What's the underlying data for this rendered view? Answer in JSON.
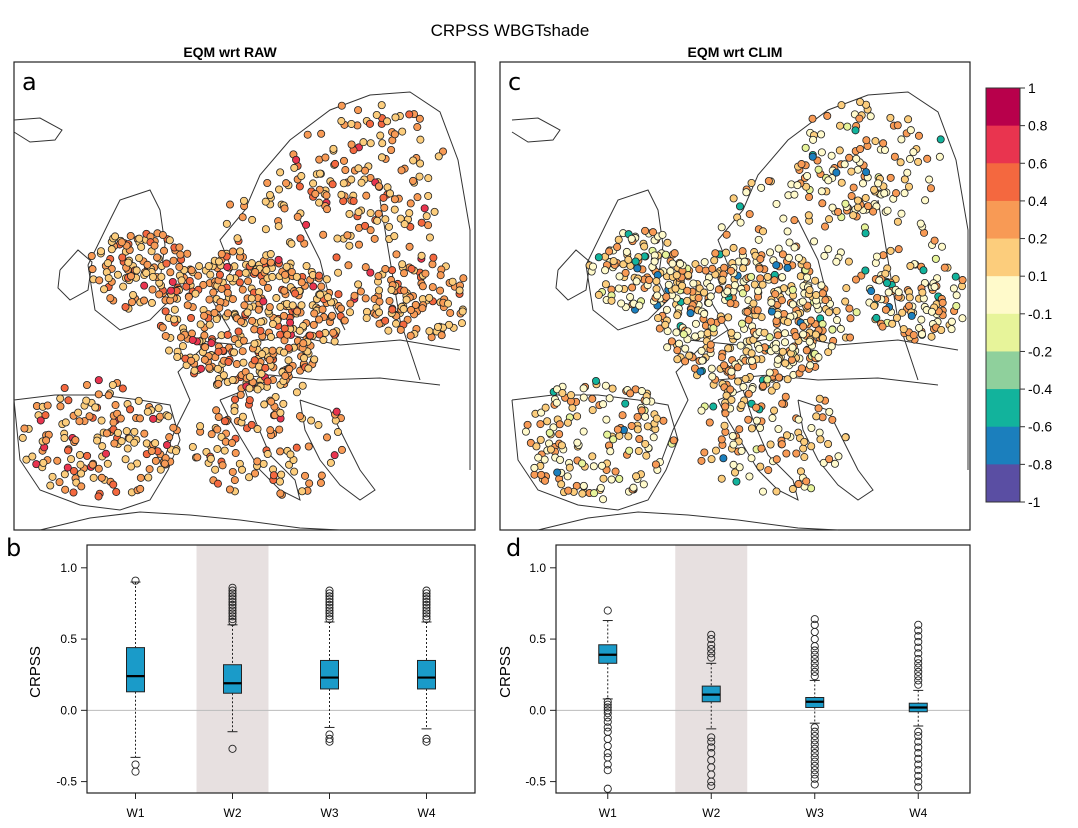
{
  "figure_title": "CRPSS WBGTshade",
  "colorbar": {
    "labels": [
      "1",
      "0.8",
      "0.6",
      "0.4",
      "0.2",
      "0.1",
      "-0.1",
      "-0.2",
      "-0.4",
      "-0.6",
      "-0.8",
      "-1"
    ],
    "colors": [
      "#b8004b",
      "#e9344f",
      "#f4683f",
      "#f89a55",
      "#fccd7c",
      "#fffacb",
      "#e7f49a",
      "#8fd09c",
      "#12b39c",
      "#1b7fbd",
      "#5a4ea3"
    ]
  },
  "station_marker_outline": "#222222",
  "chart_data": [
    {
      "type": "map",
      "panel": "a",
      "title": "EQM wrt RAW",
      "dominant_classes": [
        "0.1 to 0.2",
        "0.2 to 0.4"
      ],
      "notes": ""
    },
    {
      "type": "map",
      "panel": "c",
      "title": "EQM wrt CLIM",
      "dominant_classes": [
        "-0.1 to 0.1",
        "0.1 to 0.2",
        "0.2 to 0.4"
      ],
      "notes": ""
    },
    {
      "type": "boxplot",
      "panel": "b",
      "ylabel": "CRPSS",
      "ylim": [
        -0.58,
        1.16
      ],
      "yticks": [
        -0.5,
        0.0,
        0.5,
        1.0
      ],
      "ytick_labels": [
        "-0.5",
        "0.0",
        "0.5",
        "1.0"
      ],
      "categories": [
        "W1",
        "W2",
        "W3",
        "W4"
      ],
      "highlight_category": "W2",
      "box_color": "#1a9bc9",
      "boxes": [
        {
          "name": "W1",
          "q1": 0.13,
          "median": 0.24,
          "q3": 0.44,
          "whisker_low": -0.33,
          "whisker_high": 0.9,
          "outliers": [
            -0.38,
            -0.43,
            0.91
          ]
        },
        {
          "name": "W2",
          "q1": 0.12,
          "median": 0.19,
          "q3": 0.32,
          "whisker_low": -0.15,
          "whisker_high": 0.6,
          "outliers": [
            -0.27,
            0.62,
            0.64,
            0.66,
            0.68,
            0.7,
            0.72,
            0.74,
            0.76,
            0.78,
            0.8,
            0.82,
            0.84,
            0.86
          ]
        },
        {
          "name": "W3",
          "q1": 0.15,
          "median": 0.23,
          "q3": 0.35,
          "whisker_low": -0.12,
          "whisker_high": 0.62,
          "outliers": [
            -0.17,
            -0.2,
            -0.22,
            0.64,
            0.66,
            0.68,
            0.7,
            0.72,
            0.74,
            0.76,
            0.78,
            0.8,
            0.82,
            0.84
          ]
        },
        {
          "name": "W4",
          "q1": 0.15,
          "median": 0.23,
          "q3": 0.35,
          "whisker_low": -0.13,
          "whisker_high": 0.62,
          "outliers": [
            -0.2,
            -0.22,
            0.64,
            0.66,
            0.68,
            0.7,
            0.72,
            0.74,
            0.76,
            0.78,
            0.8,
            0.82,
            0.84
          ]
        }
      ]
    },
    {
      "type": "boxplot",
      "panel": "d",
      "ylabel": "CRPSS",
      "ylim": [
        -0.58,
        1.16
      ],
      "yticks": [
        -0.5,
        0.0,
        0.5,
        1.0
      ],
      "ytick_labels": [
        "-0.5",
        "0.0",
        "0.5",
        "1.0"
      ],
      "categories": [
        "W1",
        "W2",
        "W3",
        "W4"
      ],
      "highlight_category": "W2",
      "box_color": "#1a9bc9",
      "boxes": [
        {
          "name": "W1",
          "q1": 0.33,
          "median": 0.39,
          "q3": 0.46,
          "whisker_low": 0.08,
          "whisker_high": 0.63,
          "outliers": [
            -0.55,
            -0.42,
            -0.38,
            -0.33,
            -0.3,
            -0.25,
            -0.2,
            -0.15,
            -0.12,
            -0.08,
            -0.05,
            -0.02,
            0.0,
            0.02,
            0.04,
            0.06,
            0.7
          ]
        },
        {
          "name": "W2",
          "q1": 0.06,
          "median": 0.11,
          "q3": 0.17,
          "whisker_low": -0.13,
          "whisker_high": 0.33,
          "outliers": [
            -0.53,
            -0.5,
            -0.45,
            -0.4,
            -0.35,
            -0.3,
            -0.26,
            -0.22,
            -0.19,
            0.37,
            0.4,
            0.43,
            0.46,
            0.5,
            0.53
          ]
        },
        {
          "name": "W3",
          "q1": 0.02,
          "median": 0.06,
          "q3": 0.09,
          "whisker_low": -0.09,
          "whisker_high": 0.21,
          "outliers": [
            -0.52,
            -0.48,
            -0.45,
            -0.42,
            -0.39,
            -0.36,
            -0.33,
            -0.3,
            -0.27,
            -0.24,
            -0.21,
            -0.18,
            -0.15,
            -0.12,
            0.24,
            0.27,
            0.3,
            0.33,
            0.36,
            0.39,
            0.42,
            0.45,
            0.5,
            0.55,
            0.6,
            0.64
          ]
        },
        {
          "name": "W4",
          "q1": -0.01,
          "median": 0.02,
          "q3": 0.05,
          "whisker_low": -0.11,
          "whisker_high": 0.14,
          "outliers": [
            -0.54,
            -0.5,
            -0.46,
            -0.42,
            -0.38,
            -0.34,
            -0.3,
            -0.26,
            -0.22,
            -0.18,
            -0.15,
            0.18,
            0.21,
            0.24,
            0.27,
            0.3,
            0.33,
            0.36,
            0.4,
            0.44,
            0.48,
            0.52,
            0.56,
            0.6
          ]
        }
      ]
    }
  ]
}
